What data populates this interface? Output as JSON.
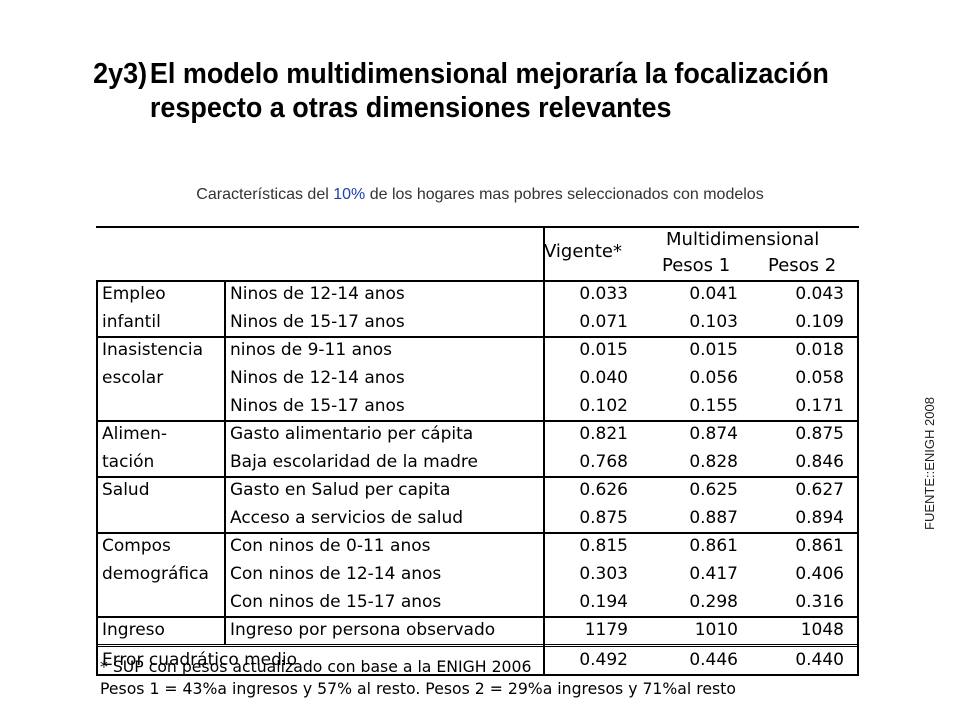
{
  "title": {
    "number": "2y3)",
    "line1": "El modelo multidimensional mejoraría la focalización",
    "line2": "respecto a otras dimensiones relevantes"
  },
  "subtitle": {
    "before": "Características del ",
    "highlight": "10%",
    "after": " de los hogares mas pobres seleccionados con modelos"
  },
  "side_label": "FUENTE::ENIGH 2008",
  "table": {
    "header": {
      "vigente": "Vigente*",
      "multi": "Multidimensional",
      "pesos1": "Pesos 1",
      "pesos2": "Pesos 2"
    },
    "groups": [
      {
        "label1": "Empleo",
        "label2": "infantil",
        "rows": [
          {
            "desc": "Ninos de 12-14 anos",
            "v": "0.033",
            "p1": "0.041",
            "p2": "0.043"
          },
          {
            "desc": "Ninos de 15-17 anos",
            "v": "0.071",
            "p1": "0.103",
            "p2": "0.109"
          }
        ]
      },
      {
        "label1": "Inasistencia",
        "label2": "escolar",
        "rows": [
          {
            "desc": "ninos de 9-11 anos",
            "v": "0.015",
            "p1": "0.015",
            "p2": "0.018"
          },
          {
            "desc": "Ninos de 12-14 anos",
            "v": "0.040",
            "p1": "0.056",
            "p2": "0.058"
          },
          {
            "desc": "Ninos de 15-17 anos",
            "v": "0.102",
            "p1": "0.155",
            "p2": "0.171"
          }
        ]
      },
      {
        "label1": "Alimen-",
        "label2": "tación",
        "rows": [
          {
            "desc": "Gasto alimentario per cápita",
            "v": "0.821",
            "p1": "0.874",
            "p2": "0.875"
          },
          {
            "desc": "Baja escolaridad de la madre",
            "v": "0.768",
            "p1": "0.828",
            "p2": "0.846"
          }
        ]
      },
      {
        "label1": "Salud",
        "label2": "",
        "rows": [
          {
            "desc": "Gasto en Salud per capita",
            "v": "0.626",
            "p1": "0.625",
            "p2": "0.627"
          },
          {
            "desc": "Acceso a servicios de salud",
            "v": "0.875",
            "p1": "0.887",
            "p2": "0.894"
          }
        ]
      },
      {
        "label1": "Compos",
        "label2": "demográfica",
        "rows": [
          {
            "desc": "Con ninos de 0-11 anos",
            "v": "0.815",
            "p1": "0.861",
            "p2": "0.861"
          },
          {
            "desc": "Con ninos de 12-14 anos",
            "v": "0.303",
            "p1": "0.417",
            "p2": "0.406"
          },
          {
            "desc": "Con ninos de 15-17 anos",
            "v": "0.194",
            "p1": "0.298",
            "p2": "0.316"
          }
        ]
      },
      {
        "label1": "Ingreso",
        "label2": "",
        "rows": [
          {
            "desc": "Ingreso por persona observado",
            "v": "1179",
            "p1": "1010",
            "p2": "1048"
          }
        ]
      }
    ],
    "error_row": {
      "label": "Error cuadrático medio",
      "v": "0.492",
      "p1": "0.446",
      "p2": "0.440"
    }
  },
  "notes": {
    "line1": "* SUP con pesos actualizado con base a la ENIGH 2006",
    "line2": "Pesos 1 = 43%a ingresos y 57% al resto. Pesos 2 = 29%a ingresos y 71%al resto"
  }
}
